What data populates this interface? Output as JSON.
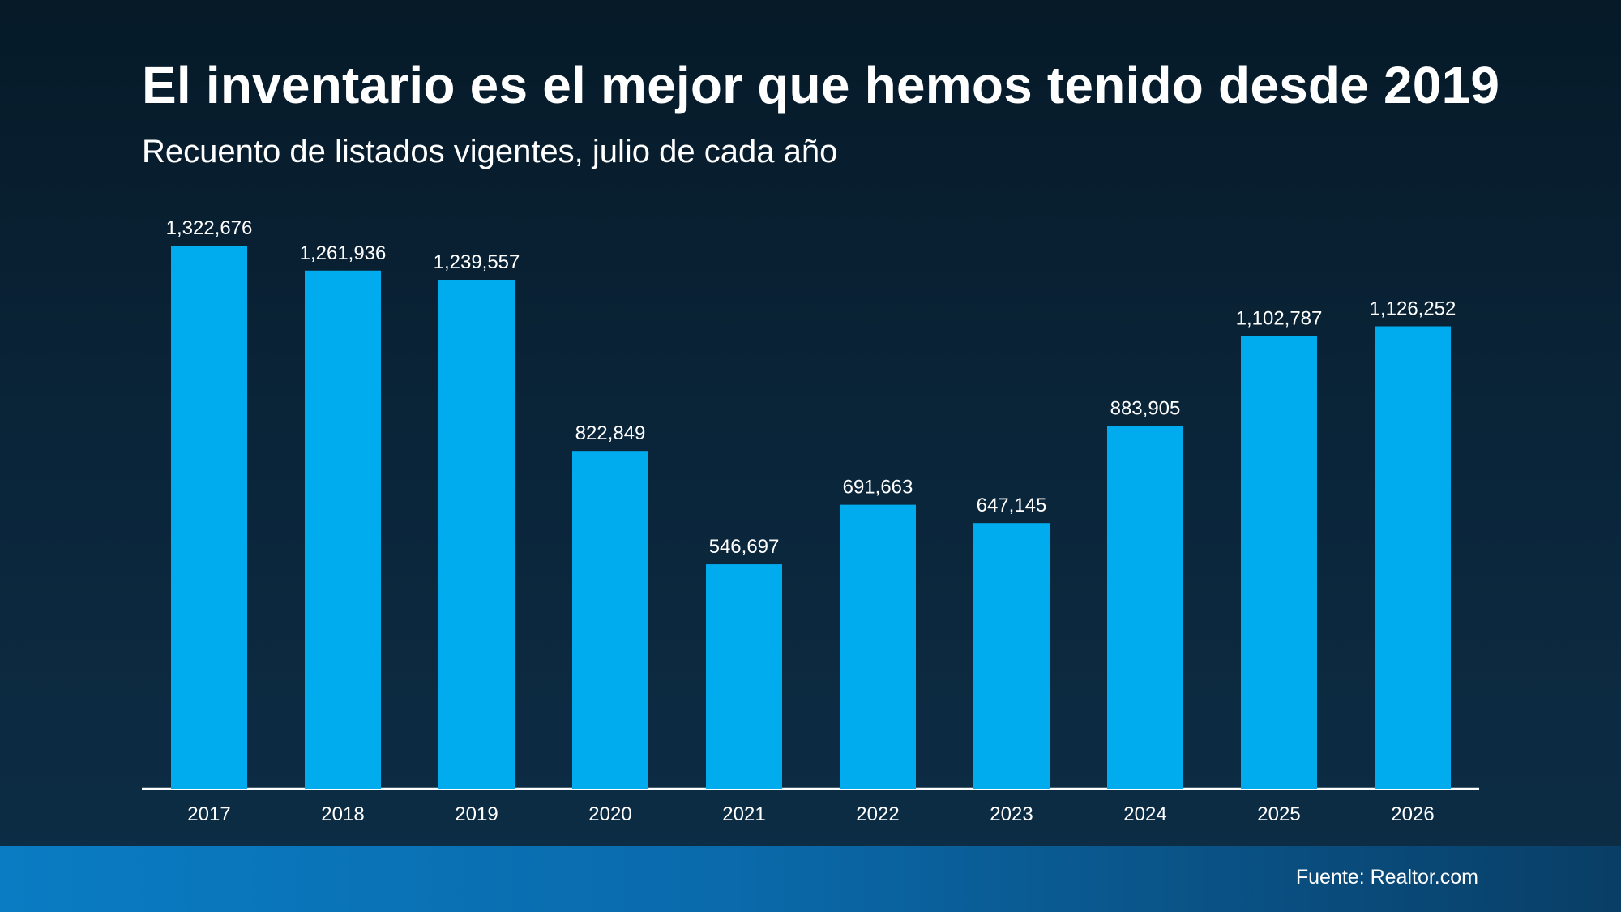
{
  "title": "El inventario es el mejor que hemos tenido desde 2019",
  "subtitle": "Recuento de listados vigentes, julio de cada año",
  "source": "Fuente: Realtor.com",
  "colors": {
    "bar": "#00acee",
    "text": "#ffffff",
    "baseline": "#ffffff"
  },
  "chart_data": {
    "type": "bar",
    "title": "El inventario es el mejor que hemos tenido desde 2019",
    "subtitle": "Recuento de listados vigentes, julio de cada año",
    "categories": [
      "2017",
      "2018",
      "2019",
      "2020",
      "2021",
      "2022",
      "2023",
      "2024",
      "2025",
      "2026"
    ],
    "values": [
      1322676,
      1261936,
      1239557,
      822849,
      546697,
      691663,
      647145,
      883905,
      1102787,
      1126252
    ],
    "data_labels": [
      "1,322,676",
      "1,261,936",
      "1,239,557",
      "822,849",
      "546,697",
      "691,663",
      "647,145",
      "883,905",
      "1,102,787",
      "1,126,252"
    ],
    "ylim": [
      0,
      1322676
    ],
    "grid": false,
    "legend": "none"
  }
}
